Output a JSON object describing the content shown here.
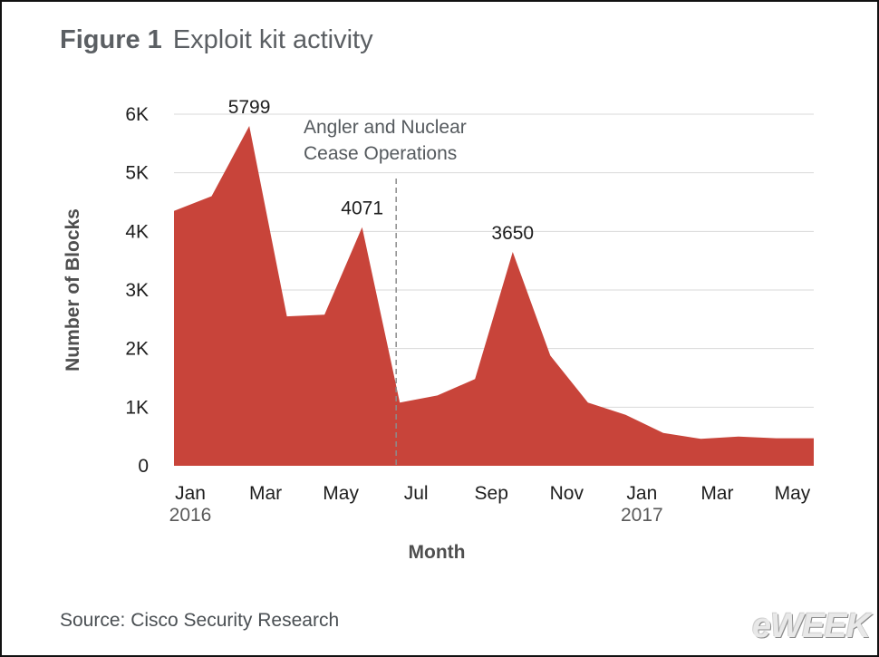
{
  "figure": {
    "label": "Figure 1",
    "title": "Exploit kit activity",
    "source": "Source: Cisco Security Research",
    "logo_text": "eWEEK"
  },
  "colors": {
    "area": "#c8443a",
    "grid": "#d9d9d9",
    "marker_line": "#8c8c8c"
  },
  "chart_data": {
    "type": "area",
    "title": "Exploit kit activity",
    "xlabel": "Month",
    "ylabel": "Number of Blocks",
    "ylim": [
      0,
      6000
    ],
    "yticks": [
      0,
      1000,
      2000,
      3000,
      4000,
      5000,
      6000
    ],
    "ytick_labels": [
      "0",
      "1K",
      "2K",
      "3K",
      "4K",
      "5K",
      "6K"
    ],
    "x": [
      "2016-01",
      "2016-02",
      "2016-03",
      "2016-04",
      "2016-05",
      "2016-06",
      "2016-07",
      "2016-08",
      "2016-09",
      "2016-10",
      "2016-11",
      "2016-12",
      "2017-01",
      "2017-02",
      "2017-03",
      "2017-04",
      "2017-05",
      "2017-06"
    ],
    "xtick_labels": [
      {
        "month": "Jan",
        "year": "2016",
        "x": "2016-01"
      },
      {
        "month": "Mar",
        "year": "",
        "x": "2016-03"
      },
      {
        "month": "May",
        "year": "",
        "x": "2016-05"
      },
      {
        "month": "Jul",
        "year": "",
        "x": "2016-07"
      },
      {
        "month": "Sep",
        "year": "",
        "x": "2016-09"
      },
      {
        "month": "Nov",
        "year": "",
        "x": "2016-11"
      },
      {
        "month": "Jan",
        "year": "2017",
        "x": "2017-01"
      },
      {
        "month": "Mar",
        "year": "",
        "x": "2017-03"
      },
      {
        "month": "May",
        "year": "",
        "x": "2017-05"
      }
    ],
    "series": [
      {
        "values": [
          4350,
          4600,
          5799,
          2550,
          2580,
          4071,
          1080,
          1200,
          1480,
          3650,
          1880,
          1080,
          870,
          560,
          460,
          500,
          470,
          470
        ]
      }
    ],
    "data_labels": [
      {
        "x": "2016-03",
        "value": 5799,
        "text": "5799"
      },
      {
        "x": "2016-06",
        "value": 4071,
        "text": "4071"
      },
      {
        "x": "2016-10",
        "value": 3650,
        "text": "3650"
      }
    ],
    "annotation": {
      "x": "2016-07",
      "lines": [
        "Angler and Nuclear",
        "Cease Operations"
      ]
    },
    "grid": true,
    "legend": "none"
  }
}
